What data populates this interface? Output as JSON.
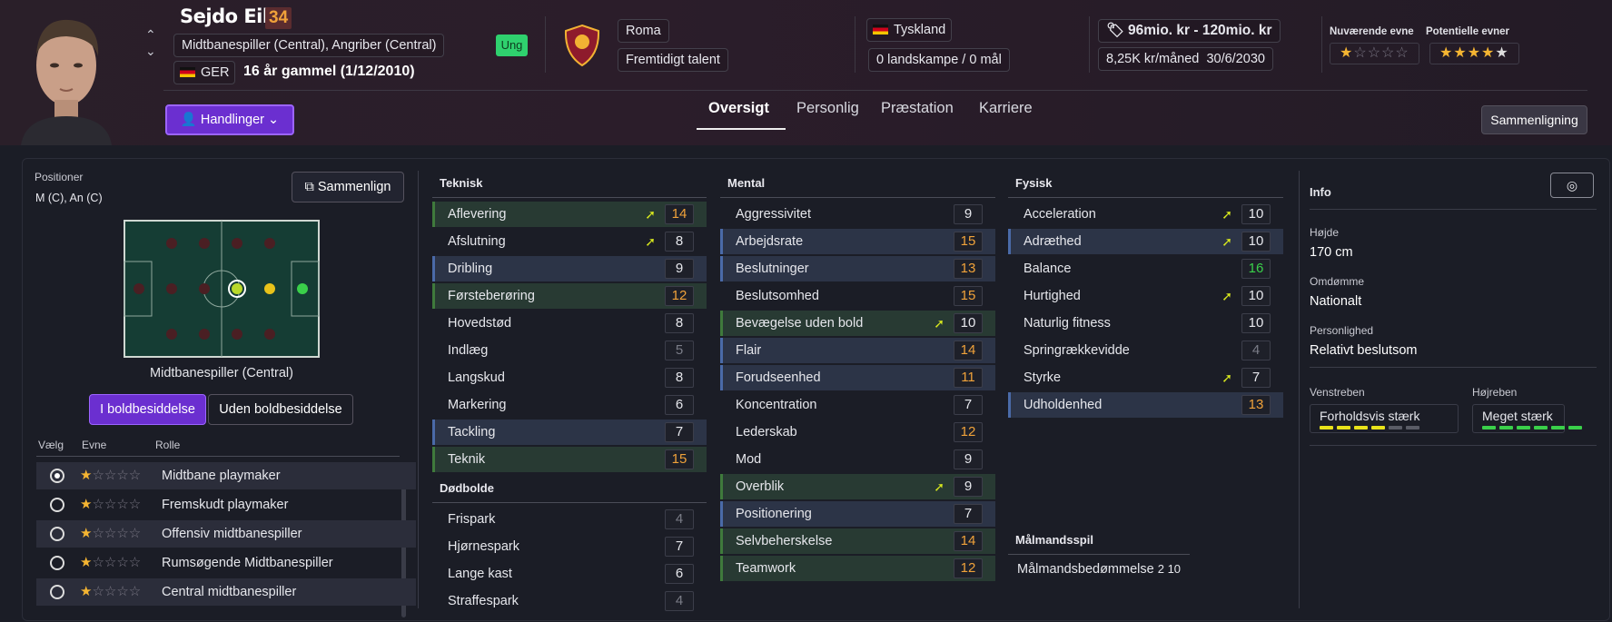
{
  "player": {
    "name": "Sejdo Eiba",
    "ca": "34",
    "positions_text": "Midtbanespiller (Central), Angriber (Central)",
    "nation": "GER",
    "age_text": "16 år gammel (1/12/2010)",
    "young_badge": "Ung"
  },
  "club": {
    "name": "Roma",
    "status": "Fremtidigt talent"
  },
  "country": {
    "name": "Tyskland",
    "caps": "0 landskampe / 0 mål"
  },
  "value": {
    "range": "96mio. kr - 120mio. kr",
    "wage": "8,25K kr/måned",
    "contract": "30/6/2030"
  },
  "ability": {
    "current_label": "Nuværende evne",
    "current_stars": 1.5,
    "potential_label": "Potentielle evner",
    "potential_stars": 4
  },
  "actions_btn": "Handlinger",
  "tabs": [
    "Oversigt",
    "Personlig",
    "Præstation",
    "Karriere"
  ],
  "compare_btn": "Sammenligning",
  "left": {
    "positions_label": "Positioner",
    "positions_value": "M (C), An (C)",
    "compare_btn": "Sammenlign",
    "pitch_label": "Midtbanespiller (Central)",
    "toggle": [
      "I boldbesiddelse",
      "Uden boldbesiddelse"
    ],
    "role_headers": [
      "Vælg",
      "Evne",
      "Rolle"
    ],
    "roles": [
      {
        "name": "Midtbane playmaker",
        "selected": true
      },
      {
        "name": "Fremskudt playmaker",
        "selected": false
      },
      {
        "name": "Offensiv midtbanespiller",
        "selected": false
      },
      {
        "name": "Rumsøgende Midtbanespiller",
        "selected": false
      },
      {
        "name": "Central midtbanespiller",
        "selected": false
      }
    ]
  },
  "teknisk": {
    "title": "Teknisk",
    "rows": [
      {
        "name": "Aflevering",
        "value": "14",
        "trend": true,
        "hl": "green"
      },
      {
        "name": "Afslutning",
        "value": "8",
        "trend": true,
        "hl": ""
      },
      {
        "name": "Dribling",
        "value": "9",
        "trend": false,
        "hl": "blue"
      },
      {
        "name": "Førsteberøring",
        "value": "12",
        "trend": false,
        "hl": "green"
      },
      {
        "name": "Hovedstød",
        "value": "8",
        "trend": false,
        "hl": ""
      },
      {
        "name": "Indlæg",
        "value": "5",
        "trend": false,
        "hl": ""
      },
      {
        "name": "Langskud",
        "value": "8",
        "trend": false,
        "hl": ""
      },
      {
        "name": "Markering",
        "value": "6",
        "trend": false,
        "hl": ""
      },
      {
        "name": "Tackling",
        "value": "7",
        "trend": false,
        "hl": "blue"
      },
      {
        "name": "Teknik",
        "value": "15",
        "trend": false,
        "hl": "green"
      }
    ]
  },
  "dodbolde": {
    "title": "Dødbolde",
    "rows": [
      {
        "name": "Frispark",
        "value": "4",
        "trend": false,
        "hl": ""
      },
      {
        "name": "Hjørnespark",
        "value": "7",
        "trend": false,
        "hl": ""
      },
      {
        "name": "Lange kast",
        "value": "6",
        "trend": false,
        "hl": ""
      },
      {
        "name": "Straffespark",
        "value": "4",
        "trend": false,
        "hl": ""
      }
    ]
  },
  "mental": {
    "title": "Mental",
    "rows": [
      {
        "name": "Aggressivitet",
        "value": "9",
        "trend": false,
        "hl": ""
      },
      {
        "name": "Arbejdsrate",
        "value": "15",
        "trend": false,
        "hl": "blue"
      },
      {
        "name": "Beslutninger",
        "value": "13",
        "trend": false,
        "hl": "blue"
      },
      {
        "name": "Beslutsomhed",
        "value": "15",
        "trend": false,
        "hl": ""
      },
      {
        "name": "Bevægelse uden bold",
        "value": "10",
        "trend": true,
        "hl": "green"
      },
      {
        "name": "Flair",
        "value": "14",
        "trend": false,
        "hl": "blue"
      },
      {
        "name": "Forudseenhed",
        "value": "11",
        "trend": false,
        "hl": "blue"
      },
      {
        "name": "Koncentration",
        "value": "7",
        "trend": false,
        "hl": ""
      },
      {
        "name": "Lederskab",
        "value": "12",
        "trend": false,
        "hl": ""
      },
      {
        "name": "Mod",
        "value": "9",
        "trend": false,
        "hl": ""
      },
      {
        "name": "Overblik",
        "value": "9",
        "trend": true,
        "hl": "green"
      },
      {
        "name": "Positionering",
        "value": "7",
        "trend": false,
        "hl": "blue"
      },
      {
        "name": "Selvbeherskelse",
        "value": "14",
        "trend": false,
        "hl": "green"
      },
      {
        "name": "Teamwork",
        "value": "12",
        "trend": false,
        "hl": "green"
      }
    ]
  },
  "fysisk": {
    "title": "Fysisk",
    "rows": [
      {
        "name": "Acceleration",
        "value": "10",
        "trend": true,
        "hl": ""
      },
      {
        "name": "Adræthed",
        "value": "10",
        "trend": true,
        "hl": "blue"
      },
      {
        "name": "Balance",
        "value": "16",
        "trend": false,
        "hl": ""
      },
      {
        "name": "Hurtighed",
        "value": "10",
        "trend": true,
        "hl": ""
      },
      {
        "name": "Naturlig fitness",
        "value": "10",
        "trend": false,
        "hl": ""
      },
      {
        "name": "Springrækkevidde",
        "value": "4",
        "trend": false,
        "hl": ""
      },
      {
        "name": "Styrke",
        "value": "7",
        "trend": true,
        "hl": ""
      },
      {
        "name": "Udholdenhed",
        "value": "13",
        "trend": false,
        "hl": "blue"
      }
    ]
  },
  "goalkeeping": {
    "title": "Målmandsspil",
    "text": "Målmandsbedømmelse",
    "value": "2 10"
  },
  "info": {
    "title": "Info",
    "height_label": "Højde",
    "height": "170 cm",
    "rep_label": "Omdømme",
    "rep": "Nationalt",
    "pers_label": "Personlighed",
    "pers": "Relativt beslutsom",
    "left_foot_label": "Venstreben",
    "left_foot": "Forholdsvis stærk",
    "left_foot_level": 4,
    "right_foot_label": "Højreben",
    "right_foot": "Meget stærk",
    "right_foot_level": 6
  },
  "colors": {
    "accent": "#6b2fd0",
    "orange": "#f0a23a",
    "green": "#3ad04a",
    "grey": "#7b7d88",
    "trend": "#d8e81e"
  }
}
